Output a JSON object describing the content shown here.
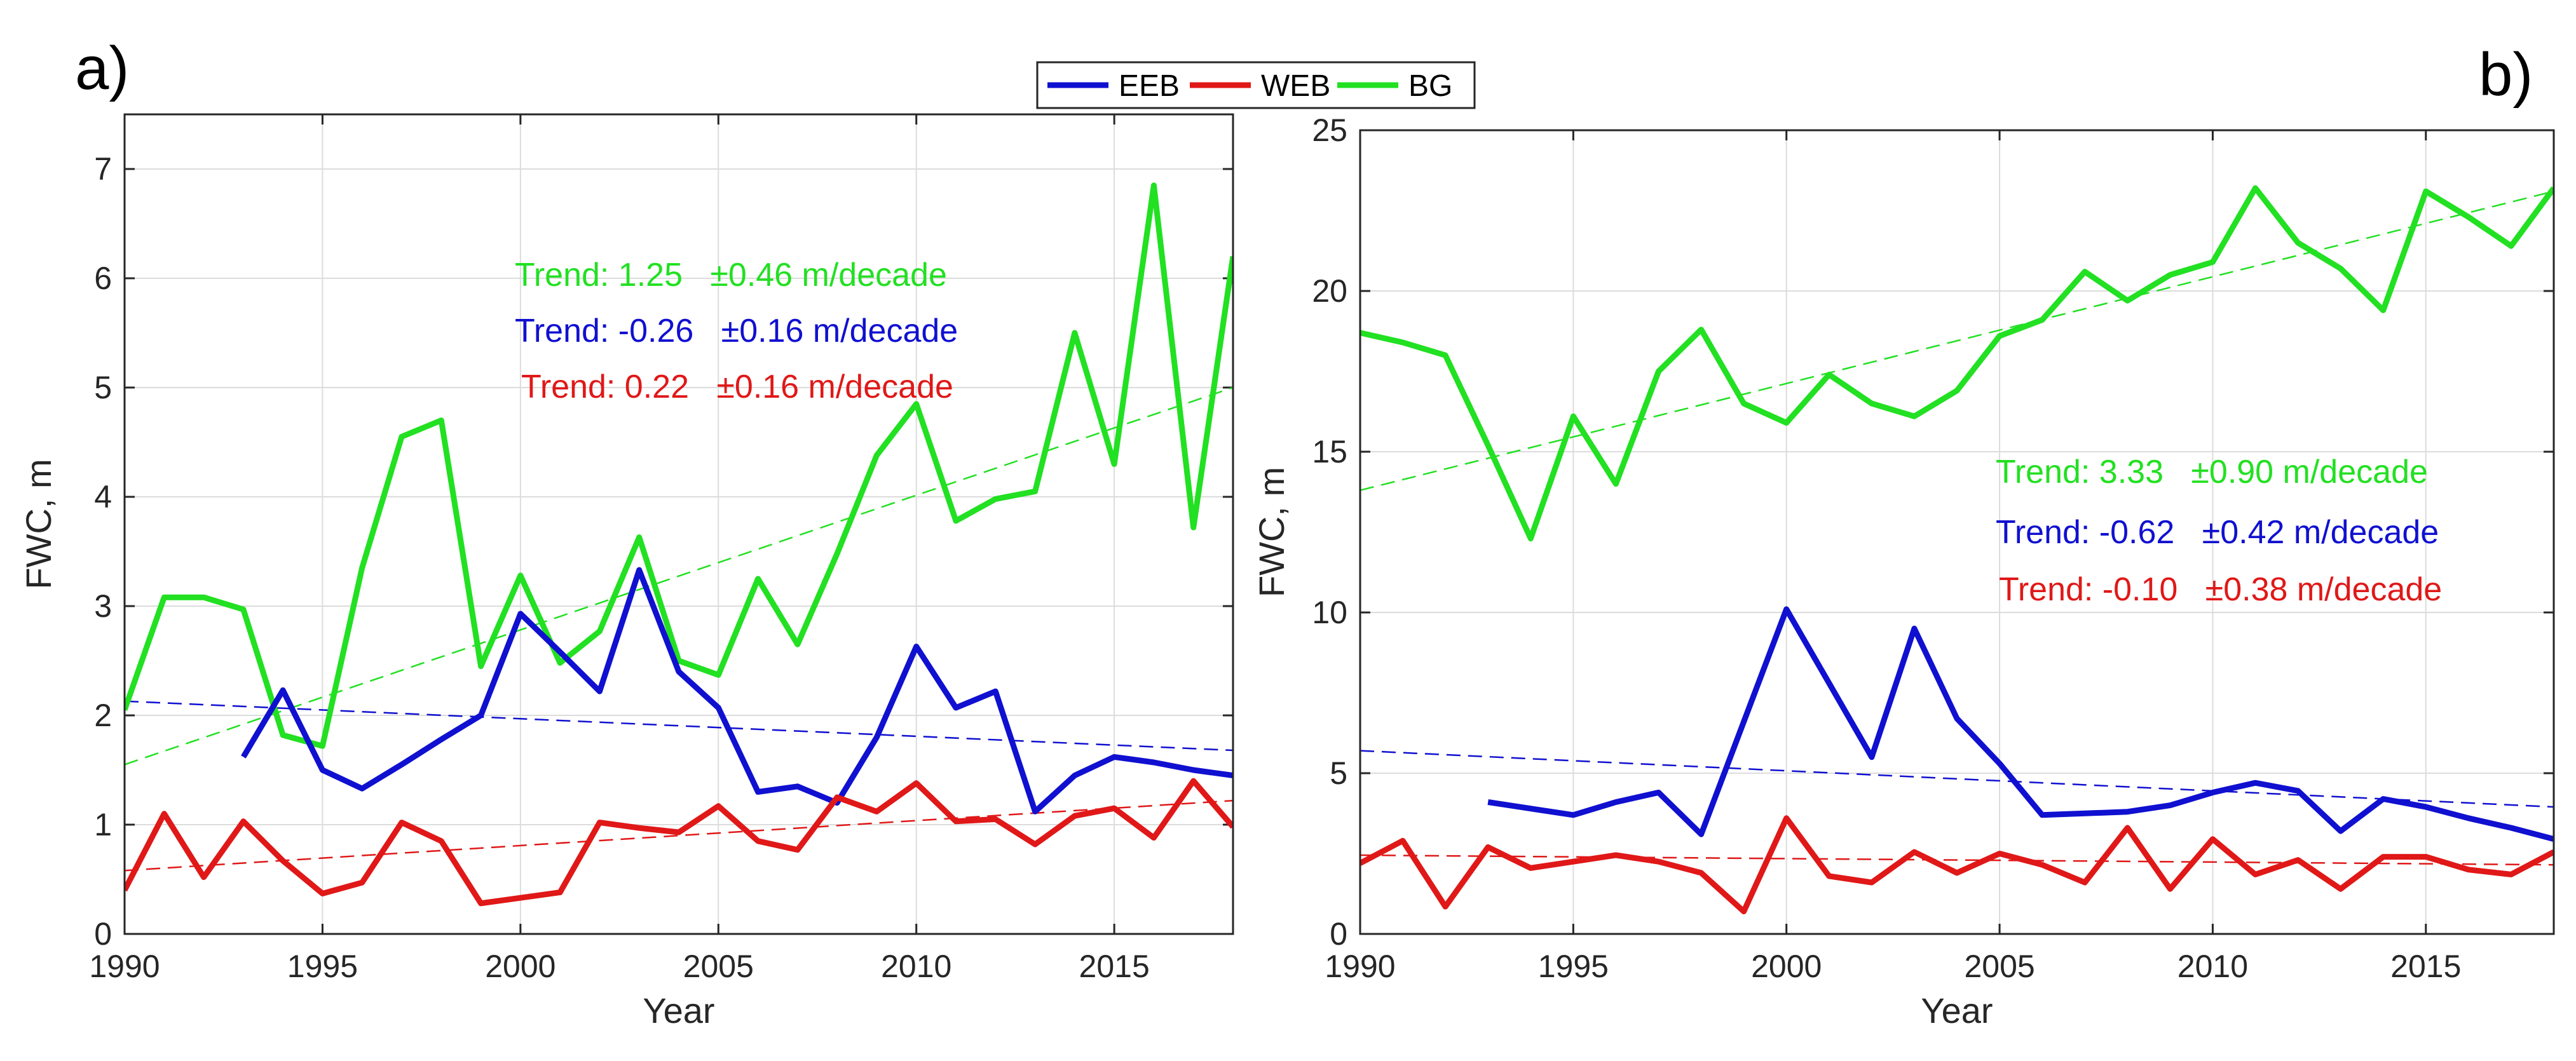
{
  "figure": {
    "legend_position": "top-center"
  },
  "legend": [
    {
      "name": "EEB",
      "color": "#1010d0"
    },
    {
      "name": "WEB",
      "color": "#e01818"
    },
    {
      "name": "BG",
      "color": "#22e022"
    }
  ],
  "chart_data": [
    {
      "type": "line",
      "panel_label": "a)",
      "title": "",
      "xlabel": "Year",
      "ylabel": "FWC, m",
      "xlim": [
        1990,
        2018
      ],
      "ylim": [
        0,
        7.5
      ],
      "xticks": [
        1990,
        1995,
        2000,
        2005,
        2010,
        2015
      ],
      "yticks": [
        0,
        1,
        2,
        3,
        4,
        5,
        6,
        7
      ],
      "grid": true,
      "series": [
        {
          "name": "BG",
          "color": "#22e022",
          "x": [
            1990,
            1991,
            1992,
            1993,
            1994,
            1995,
            1996,
            1997,
            1998,
            1999,
            2000,
            2001,
            2002,
            2003,
            2004,
            2005,
            2006,
            2007,
            2008,
            2009,
            2010,
            2011,
            2012,
            2013,
            2014,
            2015,
            2016,
            2017,
            2018
          ],
          "y": [
            2.05,
            3.08,
            3.08,
            2.97,
            1.82,
            1.72,
            3.35,
            4.55,
            4.7,
            2.45,
            3.28,
            2.48,
            2.77,
            3.63,
            2.5,
            2.37,
            3.25,
            2.65,
            3.48,
            4.38,
            4.85,
            3.78,
            3.98,
            4.05,
            5.5,
            4.3,
            6.85,
            3.72,
            6.2
          ]
        },
        {
          "name": "EEB",
          "color": "#1010d0",
          "x": [
            1993,
            1994,
            1995,
            1996,
            1997,
            1998,
            1999,
            2000,
            2001,
            2002,
            2003,
            2004,
            2005,
            2006,
            2007,
            2008,
            2009,
            2010,
            2011,
            2012,
            2013,
            2014,
            2015,
            2016,
            2017,
            2018
          ],
          "y": [
            1.62,
            2.23,
            1.5,
            1.33,
            1.55,
            1.78,
            2.0,
            2.93,
            2.58,
            2.22,
            3.33,
            2.4,
            2.07,
            1.3,
            1.35,
            1.2,
            1.8,
            2.63,
            2.07,
            2.22,
            1.12,
            1.45,
            1.62,
            1.57,
            1.5,
            1.45
          ]
        },
        {
          "name": "WEB",
          "color": "#e01818",
          "x": [
            1990,
            1991,
            1992,
            1993,
            1994,
            1995,
            1996,
            1997,
            1998,
            1999,
            2000,
            2001,
            2002,
            2003,
            2004,
            2005,
            2006,
            2007,
            2008,
            2009,
            2010,
            2011,
            2012,
            2013,
            2014,
            2015,
            2016,
            2017,
            2018
          ],
          "y": [
            0.4,
            1.1,
            0.52,
            1.03,
            0.67,
            0.37,
            0.47,
            1.02,
            0.85,
            0.28,
            0.33,
            0.38,
            1.02,
            0.97,
            0.93,
            1.17,
            0.85,
            0.77,
            1.25,
            1.12,
            1.38,
            1.03,
            1.05,
            0.82,
            1.08,
            1.15,
            0.88,
            1.4,
            0.98
          ]
        }
      ],
      "trendlines": [
        {
          "series": "BG",
          "color": "#22e022",
          "x": [
            1990,
            2018
          ],
          "y": [
            1.55,
            5.0
          ]
        },
        {
          "series": "EEB",
          "color": "#1010d0",
          "x": [
            1990,
            2018
          ],
          "y": [
            2.13,
            1.68
          ]
        },
        {
          "series": "WEB",
          "color": "#e01818",
          "x": [
            1990,
            2018
          ],
          "y": [
            0.58,
            1.22
          ]
        }
      ],
      "annotations": [
        {
          "text": "Trend: 1.25   ±0.46 m/decade",
          "color": "#22e022"
        },
        {
          "text": "Trend: -0.26   ±0.16 m/decade",
          "color": "#1010d0"
        },
        {
          "text": "Trend: 0.22   ±0.16 m/decade",
          "color": "#e01818"
        }
      ]
    },
    {
      "type": "line",
      "panel_label": "b)",
      "title": "",
      "xlabel": "Year",
      "ylabel": "FWC, m",
      "xlim": [
        1990,
        2018
      ],
      "ylim": [
        0,
        25
      ],
      "xticks": [
        1990,
        1995,
        2000,
        2005,
        2010,
        2015
      ],
      "yticks": [
        0,
        5,
        10,
        15,
        20,
        25
      ],
      "grid": true,
      "series": [
        {
          "name": "BG",
          "color": "#22e022",
          "x": [
            1990,
            1991,
            1992,
            1993,
            1994,
            1995,
            1996,
            1997,
            1998,
            1999,
            2000,
            2001,
            2002,
            2003,
            2004,
            2005,
            2006,
            2007,
            2008,
            2009,
            2010,
            2011,
            2012,
            2013,
            2014,
            2015,
            2016,
            2017,
            2018
          ],
          "y": [
            18.7,
            18.4,
            18.0,
            15.2,
            12.3,
            16.1,
            14.0,
            17.5,
            18.8,
            16.5,
            15.9,
            17.4,
            16.5,
            16.1,
            16.9,
            18.6,
            19.1,
            20.6,
            19.7,
            20.5,
            20.9,
            23.2,
            21.5,
            20.7,
            19.4,
            23.1,
            22.3,
            21.4,
            23.2
          ]
        },
        {
          "name": "EEB",
          "color": "#1010d0",
          "x": [
            1993,
            1994,
            1995,
            1996,
            1997,
            1998,
            1999,
            2000,
            2001,
            2002,
            2003,
            2004,
            2005,
            2006,
            2007,
            2008,
            2009,
            2010,
            2011,
            2012,
            2013,
            2014,
            2015,
            2016,
            2017,
            2018
          ],
          "y": [
            4.1,
            3.9,
            3.7,
            4.1,
            4.4,
            3.1,
            6.6,
            10.1,
            7.8,
            5.5,
            9.5,
            6.7,
            5.3,
            3.7,
            3.75,
            3.8,
            4.0,
            4.4,
            4.7,
            4.45,
            3.2,
            4.2,
            3.95,
            3.6,
            3.3,
            2.95
          ]
        },
        {
          "name": "WEB",
          "color": "#e01818",
          "x": [
            1990,
            1991,
            1992,
            1993,
            1994,
            1995,
            1996,
            1997,
            1998,
            1999,
            2000,
            2001,
            2002,
            2003,
            2004,
            2005,
            2006,
            2007,
            2008,
            2009,
            2010,
            2011,
            2012,
            2013,
            2014,
            2015,
            2016,
            2017,
            2018
          ],
          "y": [
            2.2,
            2.9,
            0.85,
            2.7,
            2.05,
            2.25,
            2.45,
            2.25,
            1.9,
            0.7,
            3.6,
            1.8,
            1.6,
            2.55,
            1.9,
            2.5,
            2.15,
            1.6,
            3.3,
            1.4,
            2.95,
            1.85,
            2.3,
            1.4,
            2.4,
            2.4,
            2.0,
            1.85,
            2.55
          ]
        }
      ],
      "trendlines": [
        {
          "series": "BG",
          "color": "#22e022",
          "x": [
            1990,
            2018
          ],
          "y": [
            13.8,
            23.1
          ]
        },
        {
          "series": "EEB",
          "color": "#1010d0",
          "x": [
            1990,
            2018
          ],
          "y": [
            5.7,
            3.95
          ]
        },
        {
          "series": "WEB",
          "color": "#e01818",
          "x": [
            1990,
            2018
          ],
          "y": [
            2.45,
            2.15
          ]
        }
      ],
      "annotations": [
        {
          "text": "Trend: 3.33   ±0.90 m/decade",
          "color": "#22e022"
        },
        {
          "text": "Trend: -0.62   ±0.42 m/decade",
          "color": "#1010d0"
        },
        {
          "text": "Trend: -0.10   ±0.38 m/decade",
          "color": "#e01818"
        }
      ]
    }
  ]
}
